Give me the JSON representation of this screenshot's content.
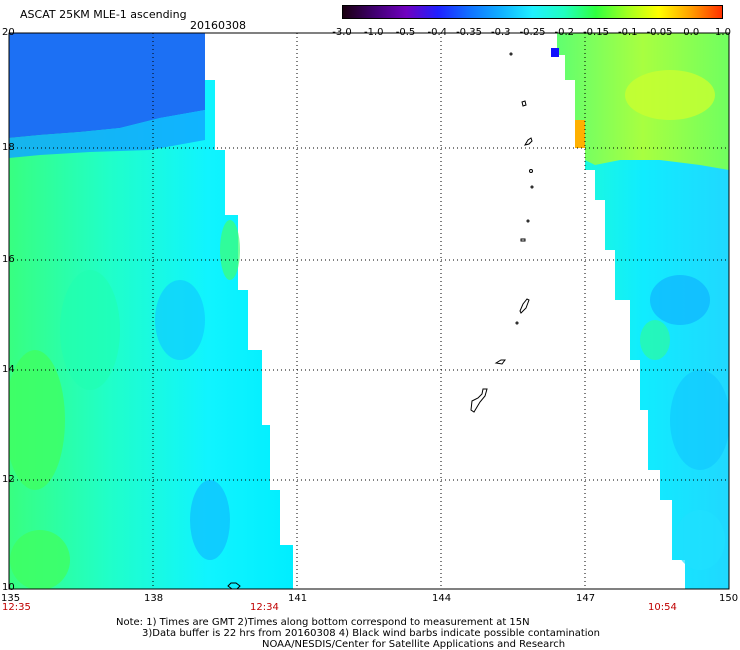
{
  "header": {
    "title": "ASCAT 25KM MLE-1 ascending",
    "date": "20160308"
  },
  "colorbar": {
    "labels": [
      "-3.0",
      "-1.0",
      "-0.5",
      "-0.4",
      "-0.35",
      "-0.3",
      "-0.25",
      "-0.2",
      "-0.15",
      "-0.1",
      "-0.05",
      "0.0",
      "1.0"
    ],
    "colors": [
      "#1a0010",
      "#400070",
      "#7000c0",
      "#2020ff",
      "#1070ff",
      "#10b0ff",
      "#20f0ff",
      "#20ffc0",
      "#30ff40",
      "#a0ff20",
      "#ffff00",
      "#ffa000",
      "#ff3000"
    ]
  },
  "axes": {
    "lon_ticks": [
      "135",
      "138",
      "141",
      "144",
      "147",
      "150"
    ],
    "lat_ticks": [
      "20",
      "18",
      "16",
      "14",
      "12",
      "10"
    ]
  },
  "times": {
    "left": "12:35",
    "middle": "12:34",
    "right": "10:54"
  },
  "notes": {
    "line1": "Note: 1) Times are GMT 2)Times along bottom correspond to measurement at 15N",
    "line2": "3)Data buffer is 22 hrs from 20160308 4) Black wind barbs indicate possible contamination",
    "line3": "NOAA/NESDIS/Center for Satellite Applications and Research"
  },
  "colors": {
    "deep_blue": "#1a6cf0",
    "mid_blue": "#10b8ff",
    "cyan": "#00f0ff",
    "aqua": "#20ffd8",
    "green": "#40ff60",
    "yellow_green": "#b0ff30",
    "orange": "#ffb000"
  }
}
